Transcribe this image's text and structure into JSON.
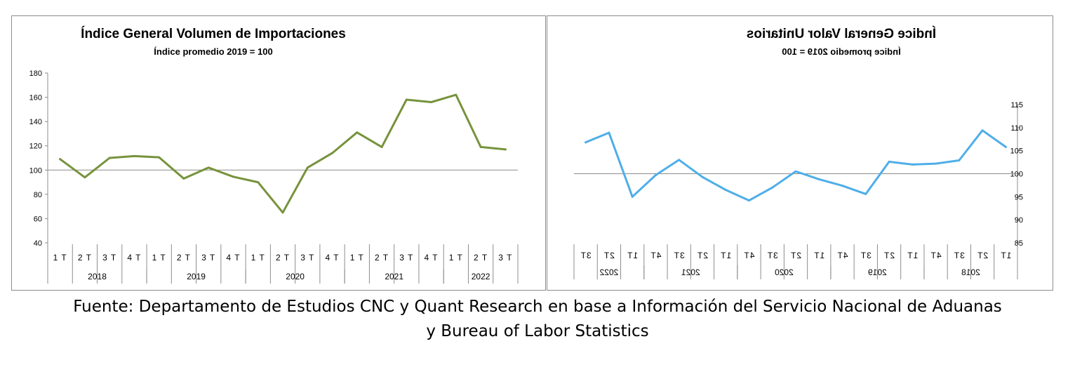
{
  "chart_data": [
    {
      "type": "line",
      "title": "Índice General Volumen de Importaciones",
      "subtitle": "Índice promedio 2019 = 100",
      "color": "#77933C",
      "ylim": [
        40,
        180
      ],
      "yticks": [
        "40",
        "60",
        "80",
        "100",
        "120",
        "140",
        "160",
        "180"
      ],
      "baseline": 100,
      "grid": false,
      "mirrored": false,
      "quarters": [
        "1 T",
        "2 T",
        "3 T",
        "4 T",
        "1 T",
        "2 T",
        "3 T",
        "4 T",
        "1 T",
        "2 T",
        "3 T",
        "4 T",
        "1 T",
        "2 T",
        "3 T",
        "4 T",
        "1 T",
        "2 T",
        "3 T"
      ],
      "years": [
        "2018",
        "2019",
        "2020",
        "2021",
        "2022"
      ],
      "year_spans": [
        4,
        4,
        4,
        4,
        3
      ],
      "values": [
        109,
        94,
        110,
        111.5,
        110.5,
        93,
        102,
        94.5,
        90,
        65,
        102,
        114,
        131,
        119,
        158,
        156,
        162,
        119,
        117
      ]
    },
    {
      "type": "line",
      "title": "Índice General Valor Unitarios",
      "subtitle": "Índice promedio 2019 = 100",
      "color": "#4FAEE8",
      "ylim": [
        85,
        115
      ],
      "yticks": [
        "85",
        "90",
        "95",
        "100",
        "105",
        "110",
        "115"
      ],
      "baseline": 100,
      "grid": false,
      "mirrored": true,
      "quarters": [
        "1T",
        "2T",
        "3T",
        "4T",
        "1T",
        "2T",
        "3T",
        "4T",
        "1T",
        "2T",
        "3T",
        "4T",
        "1T",
        "2T",
        "3T",
        "4T",
        "1T",
        "2T",
        "3T"
      ],
      "years": [
        "2018",
        "2019",
        "2020",
        "2021",
        "2022"
      ],
      "year_spans": [
        4,
        4,
        4,
        4,
        3
      ],
      "values": [
        105.8,
        109.4,
        102.9,
        102.2,
        102.0,
        102.6,
        95.6,
        97.4,
        98.8,
        100.5,
        97.0,
        94.2,
        96.5,
        99.3,
        103.0,
        99.7,
        95.0,
        108.9,
        106.8
      ]
    }
  ],
  "footer": {
    "line1": "Fuente: Departamento de Estudios CNC y Quant Research en base a Información del Servicio Nacional de Aduanas",
    "line2": "y Bureau of Labor Statistics"
  }
}
